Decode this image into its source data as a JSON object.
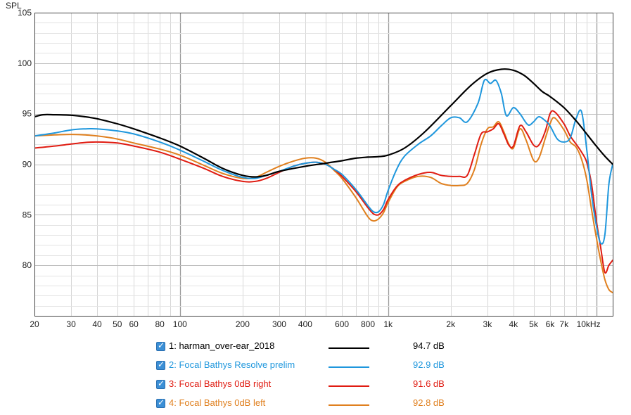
{
  "chart_data": {
    "type": "line",
    "ylabel": "SPL",
    "xscale": "log",
    "xlim": [
      20,
      12000
    ],
    "ylim": [
      75,
      105
    ],
    "ytick_values": [
      80,
      85,
      90,
      95,
      100,
      105
    ],
    "ytick_labels": [
      "80",
      "85",
      "90",
      "95",
      "100",
      "105"
    ],
    "xtick_values": [
      20,
      30,
      40,
      50,
      60,
      80,
      100,
      200,
      300,
      400,
      600,
      800,
      1000,
      2000,
      3000,
      4000,
      5000,
      6000,
      7000,
      10000
    ],
    "xtick_labels": [
      "20",
      "30",
      "40",
      "50",
      "60",
      "80",
      "100",
      "200",
      "300",
      "400",
      "600",
      "800",
      "1k",
      "2k",
      "3k",
      "4k",
      "5k",
      "6k",
      "7k",
      "10kHz"
    ],
    "series": [
      {
        "name": "1: harman_over-ear_2018",
        "color": "#000000",
        "avg": "94.7 dB",
        "x": [
          20,
          22,
          25,
          30,
          35,
          40,
          50,
          60,
          80,
          100,
          130,
          160,
          200,
          230,
          260,
          300,
          400,
          500,
          600,
          700,
          800,
          900,
          1000,
          1200,
          1500,
          2000,
          2500,
          3000,
          3500,
          4000,
          4500,
          5000,
          5500,
          6000,
          7000,
          8000,
          9000,
          10000,
          11000,
          12000
        ],
        "y": [
          94.7,
          94.9,
          94.9,
          94.85,
          94.7,
          94.5,
          94.0,
          93.5,
          92.6,
          91.8,
          90.6,
          89.6,
          88.9,
          88.75,
          88.9,
          89.3,
          89.8,
          90.1,
          90.35,
          90.6,
          90.7,
          90.75,
          90.9,
          91.6,
          93.2,
          95.8,
          97.8,
          99.0,
          99.4,
          99.3,
          98.8,
          98.0,
          97.2,
          96.7,
          95.6,
          94.3,
          93.0,
          91.8,
          90.8,
          90.0
        ]
      },
      {
        "name": "2: Focal Bathys Resolve prelim",
        "color": "#1f97dd",
        "avg": "92.9 dB",
        "x": [
          20,
          25,
          30,
          35,
          40,
          50,
          60,
          80,
          100,
          130,
          160,
          200,
          230,
          260,
          300,
          350,
          400,
          450,
          500,
          550,
          600,
          700,
          800,
          850,
          900,
          950,
          1000,
          1100,
          1200,
          1400,
          1600,
          1800,
          2000,
          2200,
          2400,
          2700,
          2900,
          3100,
          3300,
          3500,
          3700,
          4000,
          4300,
          4700,
          5000,
          5300,
          5700,
          6000,
          6500,
          7000,
          7500,
          8000,
          8500,
          9000,
          9500,
          10000,
          10500,
          11000,
          11500,
          12000
        ],
        "y": [
          92.8,
          93.1,
          93.4,
          93.5,
          93.5,
          93.3,
          93.0,
          92.2,
          91.4,
          90.3,
          89.4,
          88.7,
          88.6,
          88.9,
          89.3,
          89.8,
          90.1,
          90.2,
          90.0,
          89.5,
          89.0,
          87.5,
          85.9,
          85.3,
          85.3,
          86.0,
          87.4,
          89.5,
          90.8,
          92.0,
          92.8,
          93.8,
          94.6,
          94.6,
          94.2,
          96.0,
          98.3,
          98.0,
          98.3,
          97.0,
          94.8,
          95.6,
          95.0,
          93.9,
          94.2,
          94.7,
          94.3,
          93.8,
          92.5,
          92.2,
          92.6,
          94.5,
          95.2,
          91.5,
          87.0,
          84.0,
          82.2,
          83.0,
          88.0,
          90.0
        ]
      },
      {
        "name": "3: Focal Bathys 0dB right",
        "color": "#e01c12",
        "avg": "91.6 dB",
        "x": [
          20,
          25,
          30,
          35,
          40,
          50,
          60,
          80,
          100,
          130,
          160,
          200,
          230,
          260,
          300,
          350,
          400,
          450,
          500,
          550,
          600,
          700,
          800,
          850,
          900,
          950,
          1000,
          1100,
          1200,
          1400,
          1600,
          1800,
          2000,
          2200,
          2400,
          2600,
          2800,
          3000,
          3200,
          3400,
          3600,
          3800,
          4000,
          4300,
          4600,
          5000,
          5300,
          5700,
          6000,
          6300,
          7000,
          7500,
          8000,
          8500,
          9000,
          9500,
          10000,
          10500,
          11000,
          11500,
          12000
        ],
        "y": [
          91.6,
          91.8,
          92.0,
          92.15,
          92.2,
          92.1,
          91.8,
          91.2,
          90.5,
          89.6,
          88.8,
          88.3,
          88.3,
          88.6,
          89.2,
          89.8,
          90.1,
          90.2,
          90.0,
          89.5,
          88.8,
          87.3,
          85.7,
          85.1,
          85.0,
          85.5,
          86.5,
          87.8,
          88.4,
          89.0,
          89.2,
          88.9,
          88.8,
          88.8,
          88.9,
          91.0,
          93.0,
          93.2,
          93.5,
          94.0,
          93.0,
          91.9,
          91.8,
          93.8,
          93.2,
          91.9,
          91.9,
          93.3,
          95.0,
          95.2,
          94.0,
          92.8,
          92.0,
          91.2,
          90.2,
          88.0,
          84.5,
          81.8,
          79.3,
          80.0,
          80.5
        ]
      },
      {
        "name": "4: Focal Bathys 0dB left",
        "color": "#e0801f",
        "avg": "92.8 dB",
        "x": [
          20,
          25,
          30,
          35,
          40,
          50,
          60,
          80,
          100,
          130,
          160,
          200,
          230,
          260,
          300,
          350,
          400,
          450,
          500,
          550,
          600,
          700,
          800,
          850,
          900,
          950,
          1000,
          1100,
          1200,
          1400,
          1600,
          1800,
          2000,
          2200,
          2400,
          2600,
          2800,
          3000,
          3200,
          3400,
          3600,
          3800,
          4000,
          4300,
          4600,
          5000,
          5300,
          5700,
          6000,
          6300,
          7000,
          7500,
          8000,
          8500,
          9000,
          9500,
          10000,
          10500,
          11000,
          11500,
          12000
        ],
        "y": [
          92.8,
          92.9,
          92.95,
          92.9,
          92.8,
          92.5,
          92.1,
          91.5,
          90.9,
          89.9,
          89.1,
          88.6,
          88.7,
          89.2,
          89.8,
          90.3,
          90.6,
          90.6,
          90.2,
          89.4,
          88.6,
          86.7,
          84.8,
          84.4,
          84.6,
          85.2,
          86.2,
          87.7,
          88.3,
          88.8,
          88.7,
          88.1,
          87.9,
          87.9,
          88.1,
          89.5,
          92.0,
          93.5,
          93.7,
          94.2,
          93.2,
          92.0,
          91.6,
          93.5,
          92.4,
          90.4,
          90.6,
          92.6,
          94.0,
          94.6,
          93.4,
          92.2,
          91.7,
          90.5,
          88.5,
          85.5,
          82.8,
          80.5,
          78.6,
          77.6,
          77.3
        ]
      }
    ]
  }
}
